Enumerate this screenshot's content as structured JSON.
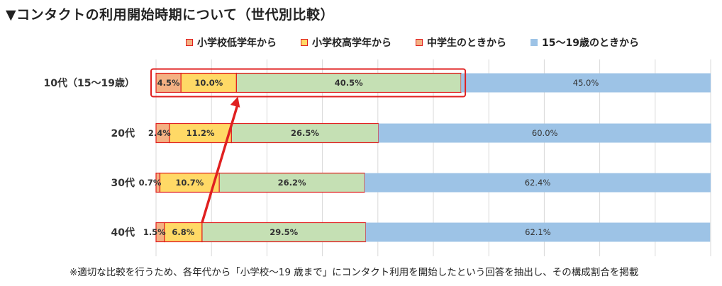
{
  "title": "▼コンタクトの利用開始時期について（世代別比較）",
  "footnote": "※適切な比較を行うため、各年代から「小学校～19 歳まで」にコンタクト利用を開始したという回答を抽出し、その構成割合を掲載",
  "colors": {
    "elementary_low": "#F4B183",
    "elementary_high": "#FFD966",
    "junior_high": "#C5E0B4",
    "age_15_19": "#9DC3E6",
    "segment_border": "#E02020",
    "highlight": "#E02020",
    "grid": "#D9D9D9"
  },
  "chart_data": {
    "type": "bar",
    "orientation": "horizontal",
    "stacked": true,
    "categories": [
      "10代（15～19歳）",
      "20代",
      "30代",
      "40代"
    ],
    "series": [
      {
        "name": "小学校低学年から",
        "values": [
          4.5,
          2.4,
          0.7,
          1.5
        ],
        "labels": [
          "4.5%",
          "2.4%",
          "0.7%",
          "1.5%"
        ]
      },
      {
        "name": "小学校高学年から",
        "values": [
          10.0,
          11.2,
          10.7,
          6.8
        ],
        "labels": [
          "10.0%",
          "11.2%",
          "10.7%",
          "6.8%"
        ]
      },
      {
        "name": "中学生のときから",
        "values": [
          40.5,
          26.5,
          26.2,
          29.5
        ],
        "labels": [
          "40.5%",
          "26.5%",
          "26.2%",
          "29.5%"
        ]
      },
      {
        "name": "15～19歳のときから",
        "values": [
          45.0,
          60.0,
          62.4,
          62.1
        ],
        "labels": [
          "45.0%",
          "60.0%",
          "62.4%",
          "62.1%"
        ]
      }
    ],
    "xlim": [
      0,
      100
    ],
    "grid": true,
    "legend": "top",
    "highlight": {
      "category": "10代（15～19歳）",
      "through_series": "中学生のときから"
    },
    "arrow": {
      "from": "40代",
      "to": "10代（15～19歳）"
    }
  }
}
